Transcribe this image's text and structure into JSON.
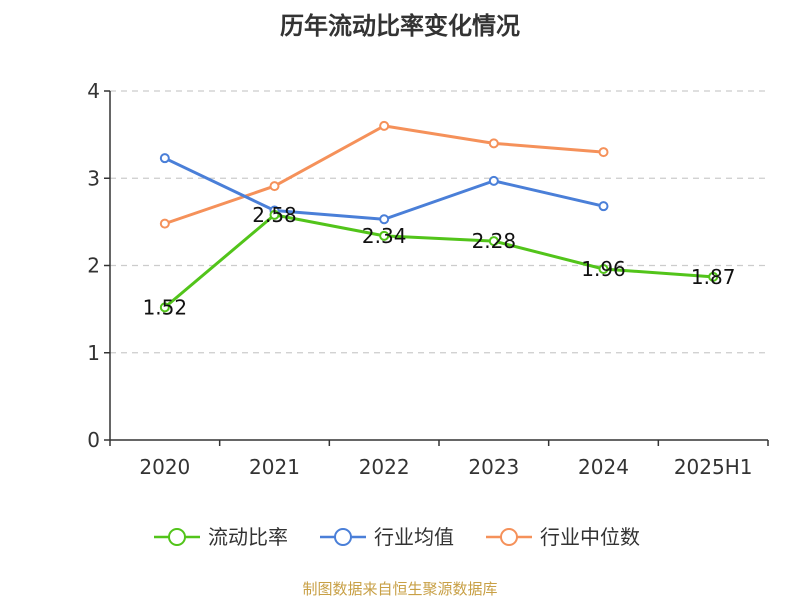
{
  "chart_data": {
    "type": "line",
    "title": "历年流动比率变化情况",
    "categories": [
      "2020",
      "2021",
      "2022",
      "2023",
      "2024",
      "2025H1"
    ],
    "ylim": [
      0,
      4
    ],
    "yticks": [
      "0",
      "1",
      "2",
      "3",
      "4"
    ],
    "grid": true,
    "legend_position": "bottom",
    "series": [
      {
        "name": "流动比率",
        "color": "#52c41a",
        "values": [
          1.52,
          2.58,
          2.34,
          2.28,
          1.96,
          1.87
        ],
        "labels": [
          "1.52",
          "2.58",
          "2.34",
          "2.28",
          "1.96",
          "1.87"
        ]
      },
      {
        "name": "行业均值",
        "color": "#4a7fd8",
        "values": [
          3.23,
          2.63,
          2.53,
          2.97,
          2.68,
          null
        ]
      },
      {
        "name": "行业中位数",
        "color": "#f5915a",
        "values": [
          2.48,
          2.91,
          3.6,
          3.4,
          3.3,
          null
        ]
      }
    ]
  },
  "footer": {
    "source": "制图数据来自恒生聚源数据库"
  }
}
